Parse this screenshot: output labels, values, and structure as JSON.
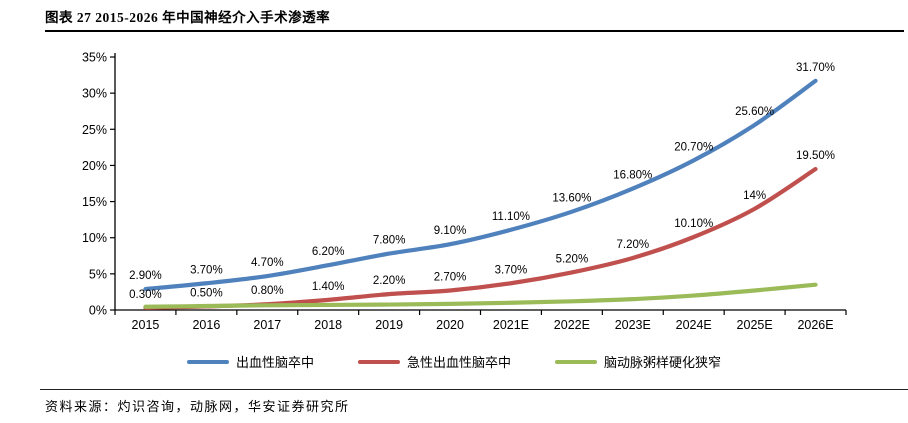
{
  "header": {
    "title": "图表 27 2015-2026 年中国神经介入手术渗透率"
  },
  "footer": {
    "source": "资料来源：灼识咨询，动脉网，华安证券研究所"
  },
  "chart_data": {
    "type": "line",
    "title": "图表 27 2015-2026 年中国神经介入手术渗透率",
    "xlabel": "",
    "ylabel": "",
    "categories": [
      "2015",
      "2016",
      "2017",
      "2018",
      "2019",
      "2020",
      "2021E",
      "2022E",
      "2023E",
      "2024E",
      "2025E",
      "2026E"
    ],
    "series": [
      {
        "name": "出血性脑卒中",
        "slug": "hemorrhagic-stroke",
        "color": "#4F81BD",
        "values": [
          2.9,
          3.7,
          4.7,
          6.2,
          7.8,
          9.1,
          11.1,
          13.6,
          16.8,
          20.7,
          25.6,
          31.7
        ],
        "labels": [
          "2.90%",
          "3.70%",
          "4.70%",
          "6.20%",
          "7.80%",
          "9.10%",
          "11.10%",
          "13.60%",
          "16.80%",
          "20.70%",
          "25.60%",
          "31.70%"
        ]
      },
      {
        "name": "急性出血性脑卒中",
        "slug": "acute-hemorrhagic-stroke",
        "color": "#C0504D",
        "values": [
          0.3,
          0.5,
          0.8,
          1.4,
          2.2,
          2.7,
          3.7,
          5.2,
          7.2,
          10.1,
          14,
          19.5
        ],
        "labels": [
          "0.30%",
          "0.50%",
          "0.80%",
          "1.40%",
          "2.20%",
          "2.70%",
          "3.70%",
          "5.20%",
          "7.20%",
          "10.10%",
          "14%",
          "19.50%"
        ]
      },
      {
        "name": "脑动脉粥样硬化狭窄",
        "slug": "atherosclerotic-stenosis",
        "color": "#9BBB59",
        "values": [
          0.45,
          0.55,
          0.65,
          0.7,
          0.75,
          0.85,
          1.0,
          1.2,
          1.5,
          2.0,
          2.7,
          3.5
        ],
        "labels": []
      }
    ],
    "ylim": [
      0,
      35
    ],
    "ytick_step": 5,
    "yticks": [
      "0%",
      "5%",
      "10%",
      "15%",
      "20%",
      "25%",
      "30%",
      "35%"
    ],
    "grid": false,
    "legend_position": "bottom"
  }
}
